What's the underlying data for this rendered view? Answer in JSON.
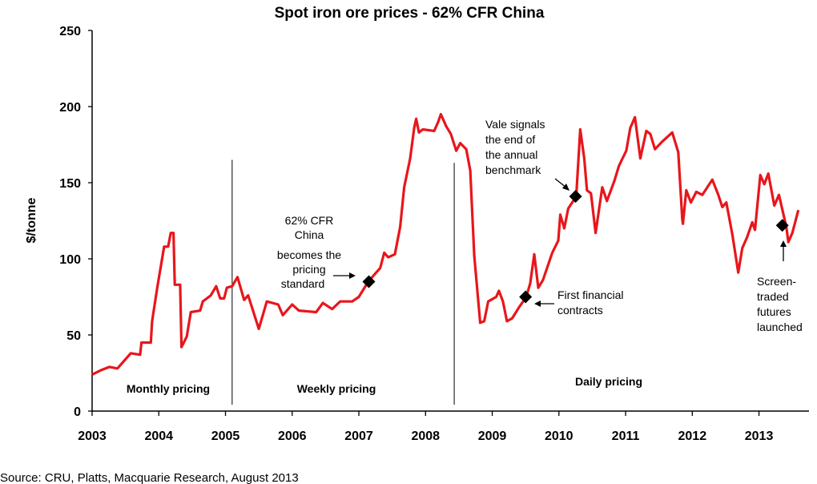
{
  "chart_data": {
    "type": "line",
    "title": "Spot iron ore prices - 62% CFR China",
    "xlabel": "",
    "ylabel": "$/tonne",
    "xlim": [
      2003,
      2013.75
    ],
    "ylim": [
      0,
      250
    ],
    "x_ticks": [
      "2003",
      "2004",
      "2005",
      "2006",
      "2007",
      "2008",
      "2009",
      "2010",
      "2011",
      "2012",
      "2013"
    ],
    "y_ticks": [
      "0",
      "50",
      "100",
      "150",
      "200",
      "250"
    ],
    "grid": false,
    "legend": "none",
    "line_color": "#e8161b",
    "series": [
      {
        "x": [
          2003.0,
          2003.14,
          2003.26,
          2003.38,
          2003.58,
          2003.72,
          2003.74,
          2003.88,
          2003.9,
          2003.98,
          2004.08,
          2004.14,
          2004.18,
          2004.22,
          2004.24,
          2004.32,
          2004.34,
          2004.42,
          2004.48,
          2004.62,
          2004.66,
          2004.78,
          2004.86,
          2004.92,
          2004.98,
          2005.02,
          2005.1,
          2005.18,
          2005.28,
          2005.34,
          2005.5,
          2005.62,
          2005.79,
          2005.86,
          2006.0,
          2006.1,
          2006.36,
          2006.46,
          2006.6,
          2006.72,
          2006.9,
          2007.0,
          2007.14,
          2007.26,
          2007.32,
          2007.38,
          2007.44,
          2007.54,
          2007.62,
          2007.68,
          2007.77,
          2007.83,
          2007.86,
          2007.9,
          2007.96,
          2008.13,
          2008.19,
          2008.23,
          2008.31,
          2008.38,
          2008.46,
          2008.52,
          2008.61,
          2008.67,
          2008.73,
          2008.82,
          2008.88,
          2008.94,
          2009.06,
          2009.1,
          2009.16,
          2009.22,
          2009.3,
          2009.4,
          2009.51,
          2009.57,
          2009.63,
          2009.69,
          2009.76,
          2009.9,
          2009.99,
          2010.02,
          2010.08,
          2010.14,
          2010.26,
          2010.32,
          2010.38,
          2010.42,
          2010.48,
          2010.55,
          2010.65,
          2010.72,
          2010.83,
          2010.9,
          2011.01,
          2011.07,
          2011.14,
          2011.22,
          2011.31,
          2011.37,
          2011.44,
          2011.55,
          2011.7,
          2011.79,
          2011.85,
          2011.86,
          2011.91,
          2011.98,
          2012.06,
          2012.15,
          2012.3,
          2012.39,
          2012.45,
          2012.51,
          2012.6,
          2012.69,
          2012.75,
          2012.82,
          2012.9,
          2012.94,
          2013.02,
          2013.08,
          2013.14,
          2013.23,
          2013.3,
          2013.41,
          2013.44,
          2013.5,
          2013.59
        ],
        "y": [
          24,
          27,
          29,
          28,
          38,
          37,
          45,
          45,
          59,
          82,
          108,
          108,
          117,
          117,
          83,
          83,
          42,
          49,
          65,
          66,
          72,
          76,
          82,
          74,
          74,
          81,
          82,
          88,
          73,
          76,
          54,
          72,
          70,
          63,
          70,
          66,
          65,
          71,
          67,
          72,
          72,
          75,
          85,
          91,
          94,
          104,
          101,
          103,
          121,
          147,
          166,
          186,
          192,
          183,
          185,
          184,
          190,
          195,
          187,
          182,
          171,
          176,
          172,
          158,
          102,
          58,
          59,
          72,
          75,
          79,
          72,
          59,
          61,
          68,
          75,
          84,
          103,
          81,
          86,
          104,
          112,
          129,
          120,
          133,
          141,
          185,
          166,
          145,
          143,
          117,
          147,
          138,
          151,
          161,
          171,
          186,
          193,
          166,
          184,
          182,
          172,
          177,
          183,
          170,
          126,
          123,
          145,
          137,
          144,
          142,
          152,
          142,
          134,
          137,
          116,
          91,
          107,
          114,
          124,
          119,
          155,
          149,
          156,
          135,
          142,
          121,
          111,
          117,
          132
        ]
      }
    ],
    "period_dividers": [
      2005.1,
      2008.43
    ],
    "period_labels": [
      "Monthly pricing",
      "Weekly pricing",
      "Daily pricing"
    ],
    "annotations": [
      {
        "x": 2007.15,
        "y": 85,
        "lines": [
          "62% CFR",
          "China",
          "becomes the",
          "pricing",
          "standard"
        ]
      },
      {
        "x": 2009.5,
        "y": 75,
        "lines": [
          "First financial",
          "contracts"
        ]
      },
      {
        "x": 2010.25,
        "y": 141,
        "lines": [
          "Vale signals",
          "the end of",
          "the annual",
          "benchmark"
        ]
      },
      {
        "x": 2013.35,
        "y": 122,
        "lines": [
          "Screen-",
          "traded",
          "futures",
          "launched"
        ]
      }
    ],
    "source": "Source: CRU, Platts, Macquarie Research, August 2013"
  }
}
